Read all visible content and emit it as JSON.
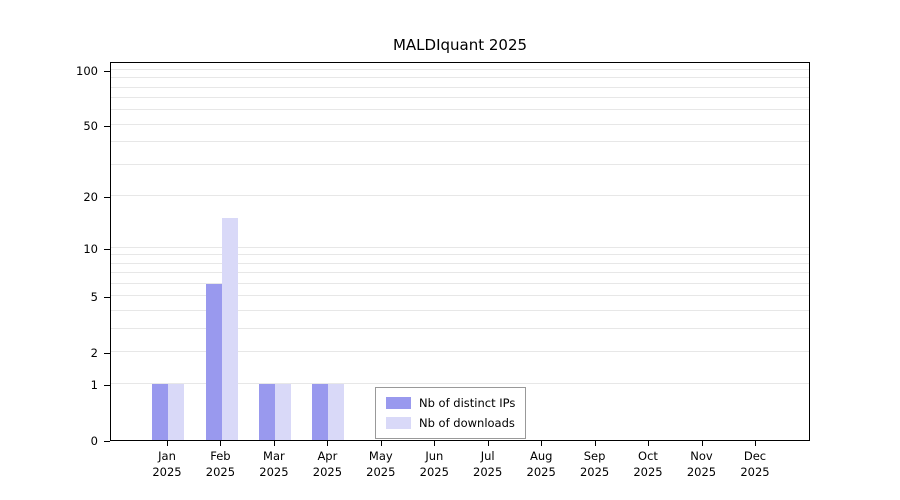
{
  "chart_data": {
    "type": "bar",
    "title": "MALDIquant 2025",
    "year": "2025",
    "categories": [
      "Jan",
      "Feb",
      "Mar",
      "Apr",
      "May",
      "Jun",
      "Jul",
      "Aug",
      "Sep",
      "Oct",
      "Nov",
      "Dec"
    ],
    "series": [
      {
        "name": "Nb of distinct IPs",
        "color": "#9999ee",
        "values": [
          1,
          6,
          1,
          1,
          0,
          0,
          0,
          0,
          0,
          0,
          0,
          0
        ]
      },
      {
        "name": "Nb of downloads",
        "color": "#d9d9f8",
        "values": [
          1,
          15,
          1,
          1,
          0,
          0,
          0,
          0,
          0,
          0,
          0,
          0
        ]
      }
    ],
    "yscale": "log10(value+1)",
    "ylim": [
      0,
      100
    ],
    "yticks": [
      0,
      1,
      2,
      5,
      10,
      20,
      50,
      100
    ],
    "grid_minor": [
      1,
      2,
      3,
      4,
      5,
      6,
      7,
      8,
      9,
      10,
      20,
      30,
      40,
      50,
      60,
      70,
      80,
      90,
      100
    ],
    "legend_position": "inside-bottom-center",
    "axis_color": "#000000",
    "grid_color": "#e7e7e7"
  }
}
